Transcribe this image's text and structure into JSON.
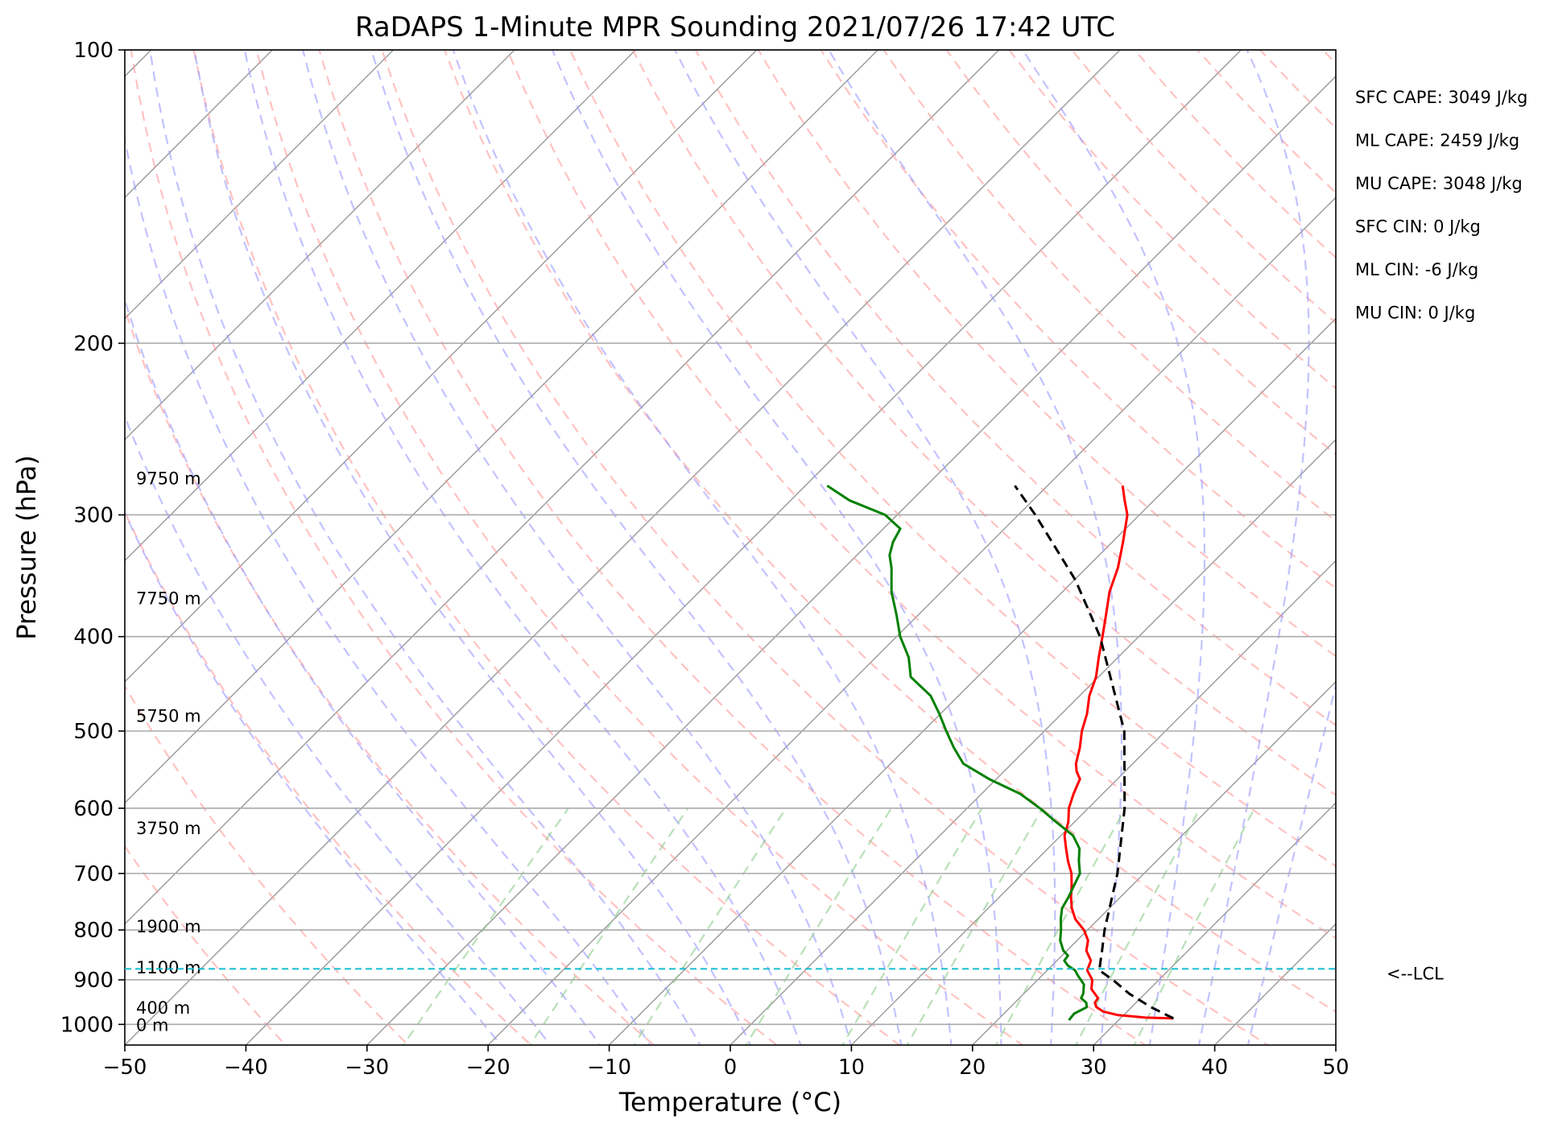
{
  "chart_data": {
    "type": "line",
    "subtype": "skew-T log-P sounding",
    "title": "RaDAPS 1-Minute MPR Sounding 2021/07/26 17:42 UTC",
    "xlabel": "Temperature (°C)",
    "ylabel": "Pressure (hPa)",
    "xlim": [
      -50,
      50
    ],
    "ylim": [
      1050,
      100
    ],
    "y_scale": "log",
    "x_ticks": [
      -50,
      -40,
      -30,
      -20,
      -10,
      0,
      10,
      20,
      30,
      40,
      50
    ],
    "x_tick_labels": [
      "−50",
      "−40",
      "−30",
      "−20",
      "−10",
      "0",
      "10",
      "20",
      "30",
      "40",
      "50"
    ],
    "y_ticks": [
      1000,
      900,
      800,
      700,
      600,
      500,
      400,
      300,
      200,
      100
    ],
    "y_tick_labels": [
      "1000",
      "900",
      "800",
      "700",
      "600",
      "500",
      "400",
      "300",
      "200",
      "100"
    ],
    "grid": true,
    "background_lines": {
      "skewed_isotherms": "grey solid",
      "dry_adiabats": "red dashed",
      "moist_adiabats": "blue dashed",
      "mixing_ratio_lines": "green dashed"
    },
    "series": [
      {
        "role": "temperature",
        "color": "#ff0000",
        "style": "solid",
        "p": [
          986,
          984,
          978,
          970,
          960,
          950,
          940,
          920,
          900,
          880,
          860,
          840,
          820,
          800,
          780,
          760,
          740,
          720,
          700,
          680,
          660,
          640,
          620,
          600,
          580,
          560,
          550,
          540,
          520,
          500,
          480,
          460,
          440,
          420,
          400,
          380,
          360,
          340,
          320,
          300,
          290,
          280
        ],
        "t": [
          34.4,
          32.0,
          29.5,
          28.0,
          27.1,
          26.6,
          26.5,
          25.2,
          24.5,
          23.3,
          22.8,
          21.6,
          20.9,
          19.7,
          18.1,
          16.9,
          15.9,
          15.0,
          14.0,
          12.7,
          11.5,
          10.3,
          9.5,
          8.4,
          7.6,
          6.9,
          6.0,
          5.3,
          4.3,
          3.1,
          2.1,
          0.8,
          -0.2,
          -1.6,
          -3.0,
          -4.5,
          -6.1,
          -7.4,
          -9.1,
          -11.0,
          -12.4,
          -13.8
        ]
      },
      {
        "role": "dewpoint",
        "color": "#008000",
        "style": "solid",
        "p": [
          990,
          975,
          960,
          950,
          940,
          930,
          910,
          890,
          880,
          870,
          860,
          850,
          840,
          820,
          800,
          780,
          760,
          740,
          720,
          700,
          680,
          660,
          640,
          620,
          600,
          580,
          560,
          540,
          520,
          500,
          480,
          460,
          440,
          420,
          400,
          380,
          360,
          340,
          330,
          320,
          310,
          300,
          290,
          280
        ],
        "td": [
          25.9,
          25.8,
          26.3,
          25.9,
          25.1,
          24.9,
          24.2,
          22.9,
          22.3,
          21.3,
          20.6,
          20.5,
          19.7,
          18.6,
          17.8,
          16.9,
          16.1,
          15.7,
          15.2,
          14.7,
          13.6,
          12.6,
          11.0,
          8.5,
          6.0,
          3.2,
          -0.6,
          -4.0,
          -6.1,
          -8.1,
          -10.1,
          -12.3,
          -15.5,
          -17.3,
          -19.7,
          -21.8,
          -24.1,
          -26.1,
          -27.3,
          -28.1,
          -28.6,
          -31.0,
          -35.1,
          -38.2
        ]
      },
      {
        "role": "parcel",
        "color": "#000000",
        "style": "dashed",
        "p": [
          986,
          960,
          930,
          900,
          880,
          860,
          840,
          800,
          700,
          600,
          500,
          400,
          350,
          300,
          280
        ],
        "t": [
          34.4,
          31.6,
          28.7,
          26.2,
          24.3,
          23.6,
          22.9,
          21.4,
          17.8,
          13.0,
          6.6,
          -3.2,
          -9.9,
          -18.6,
          -22.7
        ]
      }
    ],
    "height_labels": [
      {
        "text": "9750 m",
        "p": 275
      },
      {
        "text": "7750 m",
        "p": 365
      },
      {
        "text": "5750 m",
        "p": 482
      },
      {
        "text": "3750 m",
        "p": 628
      },
      {
        "text": "1900 m",
        "p": 792
      },
      {
        "text": "1100 m",
        "p": 873
      },
      {
        "text": "400 m",
        "p": 960
      },
      {
        "text": "0 m",
        "p": 1000
      }
    ],
    "lcl": {
      "p": 877,
      "label": "<--LCL"
    },
    "annotations": [
      "SFC CAPE: 3049 J/kg",
      "ML CAPE: 2459 J/kg",
      "MU CAPE: 3048 J/kg",
      "SFC CIN: 0 J/kg",
      "ML CIN: -6 J/kg",
      "MU CIN: 0 J/kg"
    ]
  }
}
